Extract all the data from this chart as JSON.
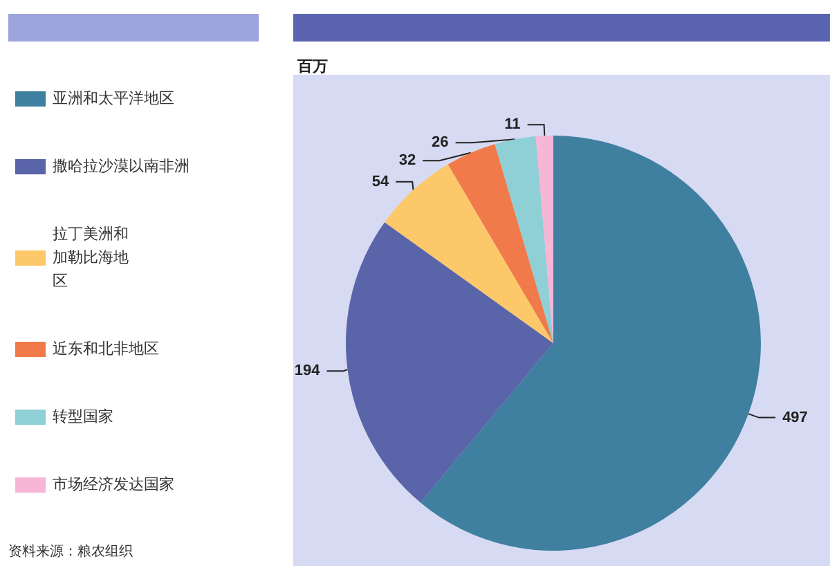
{
  "chart_data": {
    "type": "pie",
    "subtitle": "百万",
    "categories": [
      "亚洲和太平洋地区",
      "撒哈拉沙漠以南非洲",
      "拉丁美洲和加勒比海地区",
      "近东和北非地区",
      "转型国家",
      "市场经济发达国家"
    ],
    "values": [
      497,
      194,
      54,
      32,
      26,
      11
    ],
    "colors": [
      "#3f7fa0",
      "#5a64a8",
      "#fdc86a",
      "#f07a4a",
      "#8fd0d6",
      "#f6b6d6"
    ],
    "data_labels": true,
    "legend": "left",
    "annotations": [
      "资料来源：粮农组织"
    ]
  }
}
